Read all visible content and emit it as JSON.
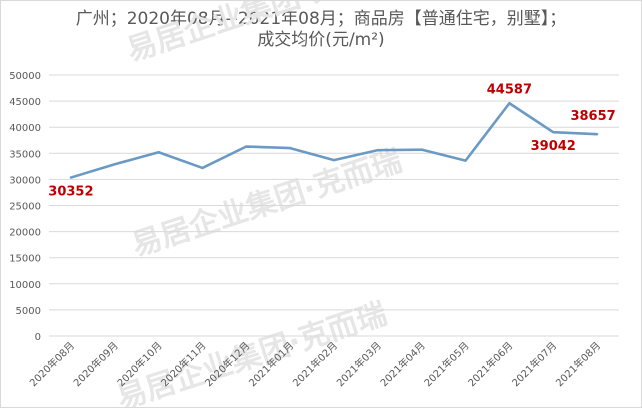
{
  "chart_data": {
    "type": "line",
    "title_line1": "广州；2020年08月--2021年08月；商品房【普通住宅，别墅】；",
    "title_line2": "成交均价(元/m²)",
    "categories": [
      "2020年08月",
      "2020年09月",
      "2020年10月",
      "2020年11月",
      "2020年12月",
      "2021年01月",
      "2021年02月",
      "2021年03月",
      "2021年04月",
      "2021年05月",
      "2021年06月",
      "2021年07月",
      "2021年08月"
    ],
    "values": [
      30352,
      32900,
      35200,
      32200,
      36300,
      36000,
      33700,
      35600,
      35700,
      33600,
      44587,
      39042,
      38657
    ],
    "data_labels": [
      {
        "index": 0,
        "text": "30352"
      },
      {
        "index": 10,
        "text": "44587"
      },
      {
        "index": 11,
        "text": "39042"
      },
      {
        "index": 12,
        "text": "38657"
      }
    ],
    "yticks": [
      "0",
      "5000",
      "10000",
      "15000",
      "20000",
      "25000",
      "30000",
      "35000",
      "40000",
      "45000",
      "50000"
    ],
    "ylim": [
      0,
      50000
    ],
    "grid": true,
    "line_color": "#6a9ac4",
    "label_color": "#c00000",
    "legend": "none"
  },
  "watermark": {
    "text1": "易居企业集团·克而瑞",
    "text2": "易居企业集团·克而瑞",
    "text3": "易居企业集团·克而瑞",
    "color": "#e6e6e6"
  }
}
